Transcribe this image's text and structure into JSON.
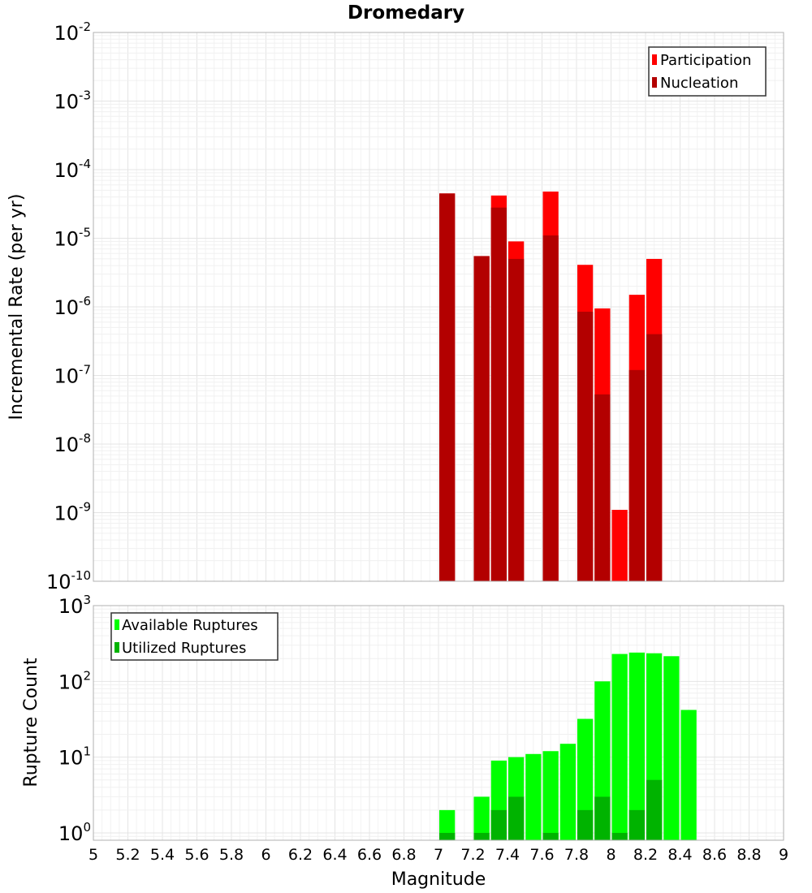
{
  "chart_data": [
    {
      "type": "bar",
      "title": "Dromedary",
      "xlabel": "Magnitude",
      "ylabel": "Incremental Rate (per yr)",
      "yscale": "log",
      "ylim": [
        1e-10,
        0.01
      ],
      "xlim": [
        5,
        9
      ],
      "bin_width": 0.1,
      "grid": true,
      "legend_position": "top-right",
      "y_tick_bases": [
        "10",
        "10",
        "10",
        "10",
        "10",
        "10",
        "10",
        "10",
        "10"
      ],
      "y_tick_exponents": [
        "-10",
        "-9",
        "-8",
        "-7",
        "-6",
        "-5",
        "-4",
        "-3",
        "-2"
      ],
      "series": [
        {
          "name": "Participation",
          "color": "#ff0000",
          "x": [
            7.05,
            7.25,
            7.35,
            7.45,
            7.65,
            7.85,
            7.95,
            8.05,
            8.15,
            8.25
          ],
          "values": [
            4.5e-05,
            5.5e-06,
            4.2e-05,
            9e-06,
            4.8e-05,
            4.1e-06,
            9.5e-07,
            1.1e-09,
            1.5e-06,
            5e-06
          ]
        },
        {
          "name": "Nucleation",
          "color": "#b30000",
          "x": [
            7.05,
            7.25,
            7.35,
            7.45,
            7.65,
            7.85,
            7.95,
            8.15,
            8.25
          ],
          "values": [
            4.5e-05,
            5.5e-06,
            2.8e-05,
            5e-06,
            1.1e-05,
            8.5e-07,
            5.3e-08,
            1.2e-07,
            4e-07
          ]
        }
      ]
    },
    {
      "type": "bar",
      "title": "",
      "xlabel": "Magnitude",
      "ylabel": "Rupture Count",
      "yscale": "log",
      "ylim": [
        0.8,
        1000
      ],
      "xlim": [
        5,
        9
      ],
      "bin_width": 0.1,
      "grid": true,
      "legend_position": "top-left",
      "x_ticks": [
        "5",
        "5.2",
        "5.4",
        "5.6",
        "5.8",
        "6",
        "6.2",
        "6.4",
        "6.6",
        "6.8",
        "7",
        "7.2",
        "7.4",
        "7.6",
        "7.8",
        "8",
        "8.2",
        "8.4",
        "8.6",
        "8.8",
        "9"
      ],
      "y_tick_bases": [
        "10",
        "10",
        "10",
        "10"
      ],
      "y_tick_exponents": [
        "0",
        "1",
        "2",
        "3"
      ],
      "series": [
        {
          "name": "Available Ruptures",
          "color": "#00ff00",
          "x": [
            7.05,
            7.25,
            7.35,
            7.45,
            7.55,
            7.65,
            7.75,
            7.85,
            7.95,
            8.05,
            8.15,
            8.25,
            8.35,
            8.45
          ],
          "values": [
            2,
            3,
            9,
            10,
            11,
            12,
            15,
            32,
            100,
            230,
            240,
            235,
            215,
            42
          ]
        },
        {
          "name": "Utilized Ruptures",
          "color": "#00b300",
          "x": [
            7.05,
            7.25,
            7.35,
            7.45,
            7.65,
            7.85,
            7.95,
            8.05,
            8.15,
            8.25
          ],
          "values": [
            1,
            1,
            2,
            3,
            1,
            2,
            3,
            1,
            2,
            5
          ]
        }
      ]
    }
  ]
}
